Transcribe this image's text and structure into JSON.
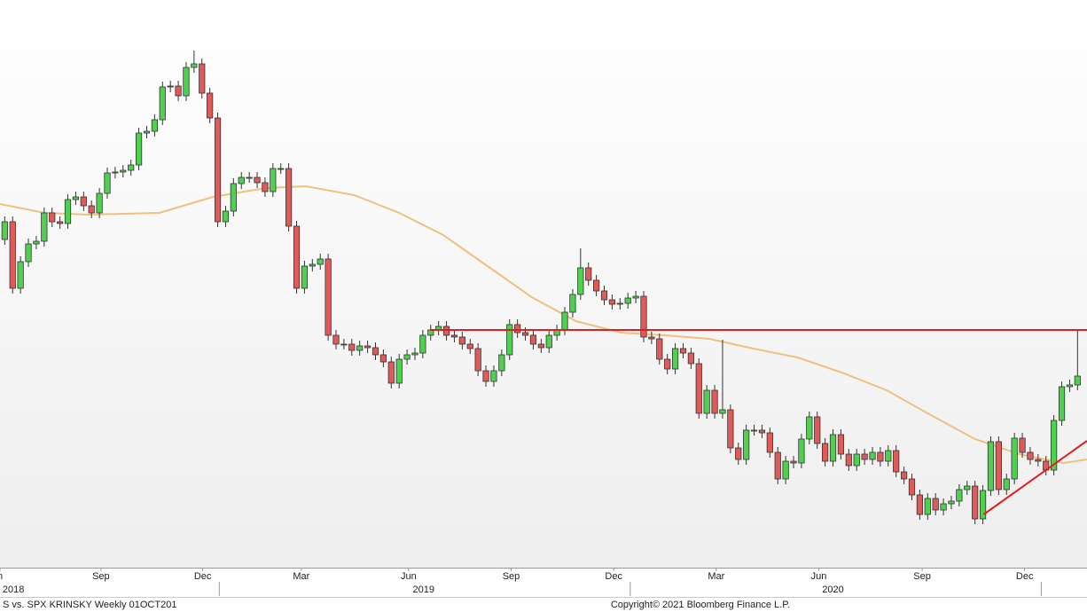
{
  "chart_data": {
    "type": "candlestick",
    "open": [
      370,
      390,
      315,
      345,
      365,
      368,
      400,
      390,
      388,
      415,
      418,
      408,
      400,
      422,
      445,
      446,
      448,
      454,
      490,
      492,
      505,
      542,
      543,
      532,
      564,
      568,
      535,
      507,
      390,
      402,
      433,
      440,
      440,
      434,
      424,
      450,
      450,
      385,
      315,
      340,
      342,
      348,
      262,
      252,
      252,
      245,
      250,
      248,
      240,
      232,
      208,
      235,
      240,
      242,
      262,
      268,
      272,
      262,
      260,
      252,
      247,
      222,
      210,
      222,
      240,
      274,
      265,
      262,
      252,
      248,
      262,
      268,
      288,
      308,
      338,
      324,
      312,
      302,
      297,
      298,
      304,
      306,
      260,
      258,
      235,
      224,
      247,
      242,
      230,
      174,
      200,
      174,
      178,
      135,
      122,
      155,
      155,
      152,
      130,
      100,
      120,
      118,
      145,
      170,
      140,
      120,
      150,
      128,
      115,
      128,
      122,
      130,
      120,
      132,
      108,
      100,
      82,
      60,
      78,
      65,
      72,
      75,
      88,
      92,
      55,
      87,
      142,
      88,
      100,
      146,
      130,
      122,
      120,
      110,
      166,
      204,
      206
    ],
    "high": [
      396,
      396,
      351,
      371,
      374,
      406,
      406,
      396,
      421,
      424,
      424,
      414,
      428,
      451,
      452,
      454,
      460,
      496,
      498,
      511,
      548,
      549,
      549,
      570,
      583,
      574,
      541,
      513,
      408,
      439,
      446,
      446,
      446,
      440,
      456,
      456,
      456,
      391,
      346,
      348,
      354,
      354,
      268,
      258,
      258,
      256,
      256,
      254,
      246,
      238,
      241,
      246,
      248,
      268,
      274,
      278,
      278,
      268,
      266,
      258,
      253,
      228,
      228,
      246,
      280,
      280,
      271,
      268,
      258,
      268,
      274,
      294,
      314,
      360,
      344,
      330,
      318,
      308,
      304,
      310,
      312,
      312,
      266,
      264,
      241,
      253,
      253,
      248,
      236,
      206,
      206,
      257,
      184,
      141,
      161,
      161,
      161,
      158,
      136,
      126,
      126,
      151,
      176,
      176,
      146,
      156,
      156,
      134,
      134,
      134,
      136,
      136,
      138,
      138,
      114,
      106,
      88,
      84,
      84,
      78,
      81,
      94,
      98,
      98,
      93,
      148,
      148,
      106,
      152,
      152,
      136,
      128,
      126,
      172,
      210,
      212,
      268
    ],
    "low": [
      364,
      309,
      309,
      339,
      359,
      362,
      384,
      382,
      382,
      409,
      402,
      394,
      394,
      416,
      439,
      440,
      442,
      448,
      484,
      486,
      499,
      536,
      526,
      526,
      558,
      529,
      501,
      384,
      384,
      396,
      427,
      434,
      428,
      418,
      418,
      444,
      379,
      309,
      309,
      334,
      336,
      256,
      246,
      246,
      239,
      239,
      242,
      234,
      226,
      202,
      202,
      229,
      234,
      236,
      256,
      262,
      256,
      254,
      246,
      241,
      216,
      204,
      204,
      216,
      234,
      259,
      256,
      246,
      242,
      242,
      256,
      262,
      282,
      302,
      318,
      306,
      296,
      291,
      291,
      292,
      298,
      254,
      252,
      229,
      218,
      218,
      236,
      224,
      168,
      168,
      168,
      168,
      129,
      116,
      116,
      149,
      146,
      124,
      94,
      94,
      112,
      112,
      139,
      134,
      114,
      114,
      122,
      109,
      109,
      116,
      116,
      114,
      114,
      102,
      94,
      76,
      54,
      54,
      59,
      59,
      66,
      69,
      82,
      49,
      49,
      81,
      82,
      82,
      94,
      124,
      116,
      114,
      104,
      104,
      160,
      198,
      200
    ],
    "close": [
      390,
      315,
      345,
      365,
      368,
      400,
      390,
      388,
      415,
      418,
      408,
      400,
      422,
      445,
      446,
      448,
      454,
      490,
      492,
      505,
      542,
      543,
      532,
      564,
      568,
      535,
      507,
      390,
      402,
      433,
      440,
      440,
      434,
      424,
      450,
      450,
      385,
      315,
      340,
      342,
      348,
      262,
      252,
      252,
      245,
      250,
      248,
      240,
      232,
      208,
      235,
      240,
      242,
      262,
      268,
      272,
      262,
      260,
      252,
      247,
      222,
      210,
      222,
      240,
      274,
      265,
      262,
      252,
      248,
      262,
      268,
      288,
      308,
      338,
      324,
      312,
      302,
      297,
      298,
      304,
      306,
      260,
      258,
      235,
      224,
      247,
      242,
      230,
      174,
      200,
      174,
      178,
      135,
      122,
      155,
      155,
      152,
      130,
      100,
      120,
      118,
      145,
      170,
      140,
      120,
      150,
      128,
      115,
      128,
      122,
      130,
      120,
      132,
      108,
      100,
      82,
      60,
      78,
      65,
      72,
      75,
      88,
      92,
      55,
      87,
      142,
      88,
      100,
      146,
      130,
      122,
      120,
      110,
      166,
      204,
      206,
      216
    ],
    "up_color": "#4fd14f",
    "down_color": "#e05a5a",
    "xlim": [
      -0.6,
      137.2
    ],
    "ylim": [
      0,
      640
    ],
    "xticks": [
      {
        "value": -0.6,
        "label": "n"
      },
      {
        "value": 12.2,
        "label": "Sep"
      },
      {
        "value": 25.1,
        "label": "Dec"
      },
      {
        "value": 37.6,
        "label": "Mar"
      },
      {
        "value": 51.2,
        "label": "Jun"
      },
      {
        "value": 64.2,
        "label": "Sep"
      },
      {
        "value": 77.2,
        "label": "Dec"
      },
      {
        "value": 90.2,
        "label": "Mar"
      },
      {
        "value": 103.2,
        "label": "Jun"
      },
      {
        "value": 116.3,
        "label": "Sep"
      },
      {
        "value": 129.3,
        "label": "Dec"
      }
    ],
    "year_labels": [
      {
        "value": 1.1,
        "label": "2018"
      },
      {
        "value": 53.1,
        "label": "2019"
      },
      {
        "value": 105.0,
        "label": "2020"
      }
    ],
    "year_breaks": [
      27.2,
      79.3,
      131.4
    ],
    "moving_average": {
      "color": "#f0c080",
      "x": [
        -0.6,
        5.0,
        10.6,
        19.6,
        26.4,
        33.1,
        38.2,
        44.3,
        50.0,
        55.6,
        61.2,
        66.8,
        72.4,
        78.1,
        83.7,
        89.3,
        94.9,
        100.5,
        106.1,
        111.8,
        117.4,
        123.0,
        128.6,
        134.2,
        137.2
      ],
      "values": [
        410,
        400,
        398,
        400,
        418,
        428,
        430,
        420,
        400,
        375,
        340,
        305,
        278,
        265,
        262,
        258,
        247,
        237,
        220,
        200,
        172,
        145,
        128,
        118,
        122
      ]
    },
    "lines": [
      {
        "color": "#e02020",
        "x": [
          53.9,
          137.2
        ],
        "values": [
          268,
          268
        ]
      },
      {
        "color": "#e02020",
        "x": [
          124.1,
          137.2
        ],
        "values": [
          60,
          143
        ]
      }
    ],
    "footer_left": "S vs. SPX KRINSKY  Weekly 01OCT201",
    "footer_right": "Copyright© 2021 Bloomberg Finance L.P."
  }
}
